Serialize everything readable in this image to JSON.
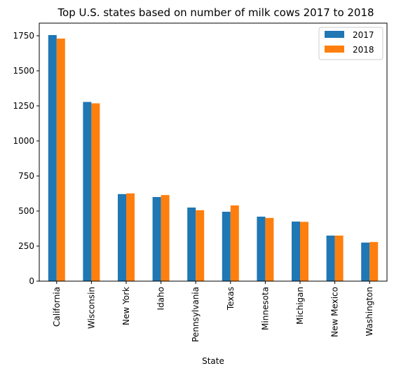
{
  "chart_data": {
    "type": "bar",
    "title": "Top U.S. states based on number of milk cows 2017 to 2018",
    "xlabel": "State",
    "ylabel": "",
    "categories": [
      "California",
      "Wisconsin",
      "New York",
      "Idaho",
      "Pennsylvania",
      "Texas",
      "Minnesota",
      "Michigan",
      "New Mexico",
      "Washington"
    ],
    "series": [
      {
        "name": "2017",
        "color": "#1f77b4",
        "values": [
          1755,
          1278,
          621,
          600,
          525,
          495,
          460,
          425,
          325,
          275
        ]
      },
      {
        "name": "2018",
        "color": "#ff7f0e",
        "values": [
          1730,
          1268,
          626,
          614,
          506,
          540,
          451,
          423,
          325,
          279
        ]
      }
    ],
    "ylim": [
      0,
      1840
    ],
    "yticks": [
      0,
      250,
      500,
      750,
      1000,
      1250,
      1500,
      1750
    ],
    "legend": "top-right",
    "grid": false
  }
}
